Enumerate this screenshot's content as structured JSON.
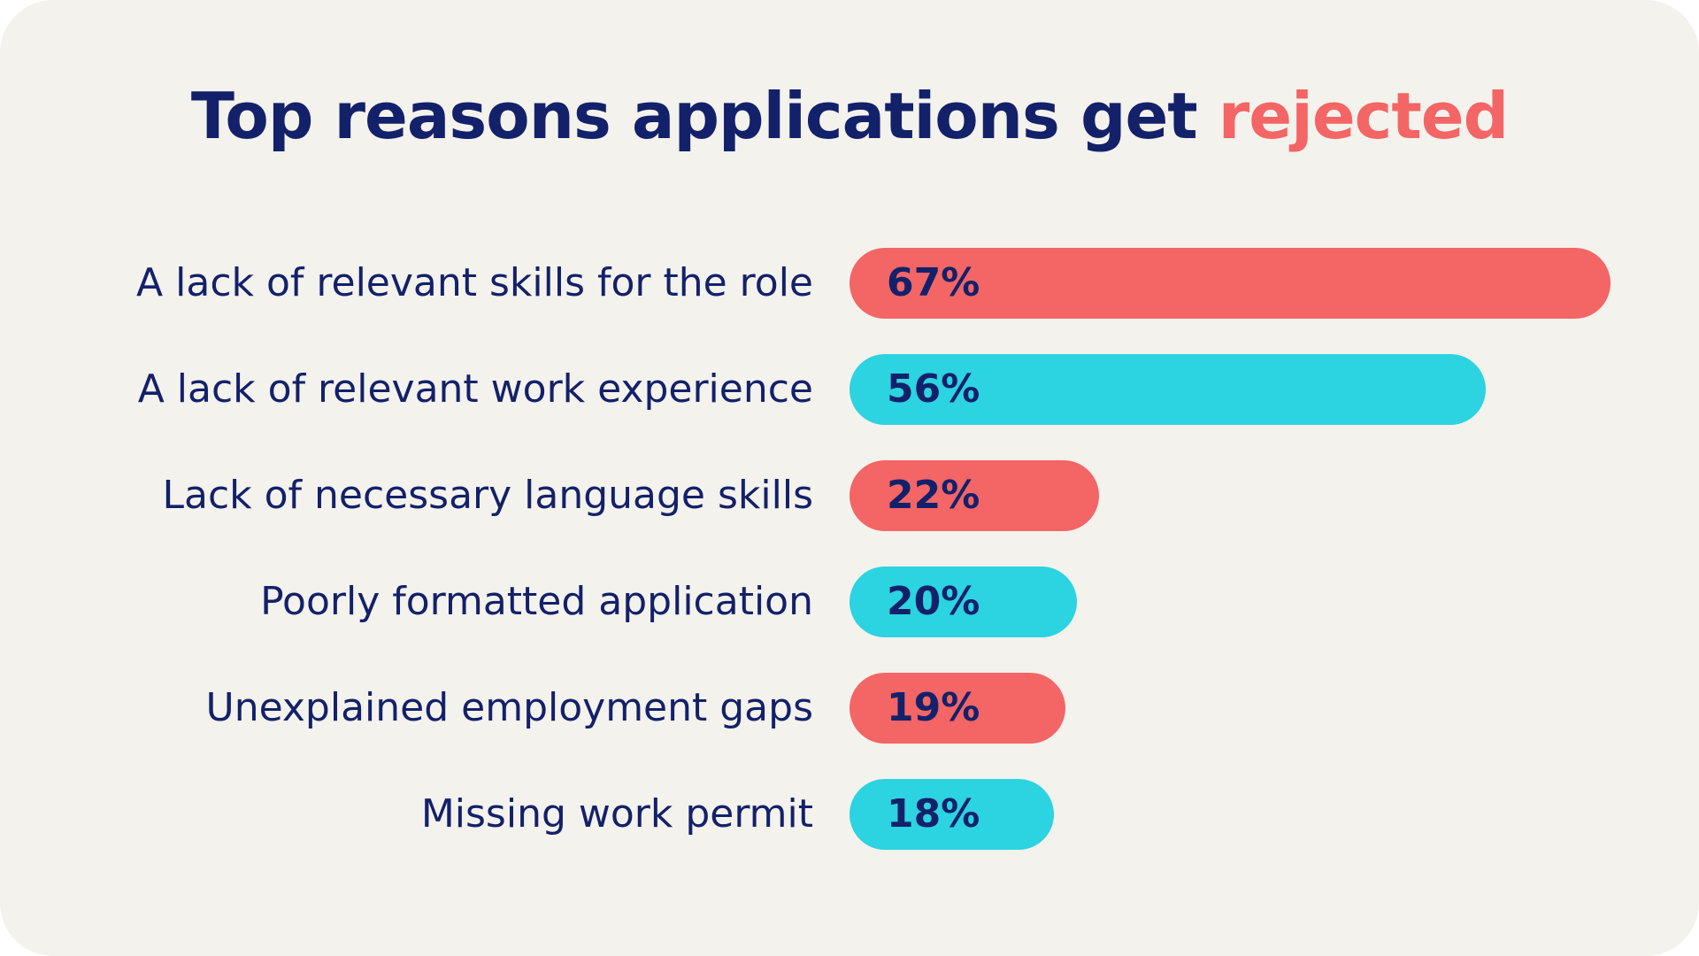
{
  "title": {
    "prefix": "Top reasons applications get ",
    "highlight": "rejected"
  },
  "colors": {
    "background": "#f4f2ec",
    "text": "#13216a",
    "coral": "#f46565",
    "cyan": "#2cd3e0"
  },
  "chart_data": {
    "type": "bar",
    "orientation": "horizontal",
    "title": "Top reasons applications get rejected",
    "categories": [
      "A lack of relevant skills for the role",
      "A lack of relevant work experience",
      "Lack of necessary language skills",
      "Poorly formatted application",
      "Unexplained employment gaps",
      "Missing work permit"
    ],
    "values": [
      67,
      56,
      22,
      20,
      19,
      18
    ],
    "value_labels": [
      "67%",
      "56%",
      "22%",
      "20%",
      "19%",
      "18%"
    ],
    "unit": "%",
    "bar_colors": [
      "#f46565",
      "#2cd3e0",
      "#f46565",
      "#2cd3e0",
      "#f46565",
      "#2cd3e0"
    ],
    "xlim": [
      0,
      67
    ],
    "grid": false,
    "legend": "none"
  }
}
